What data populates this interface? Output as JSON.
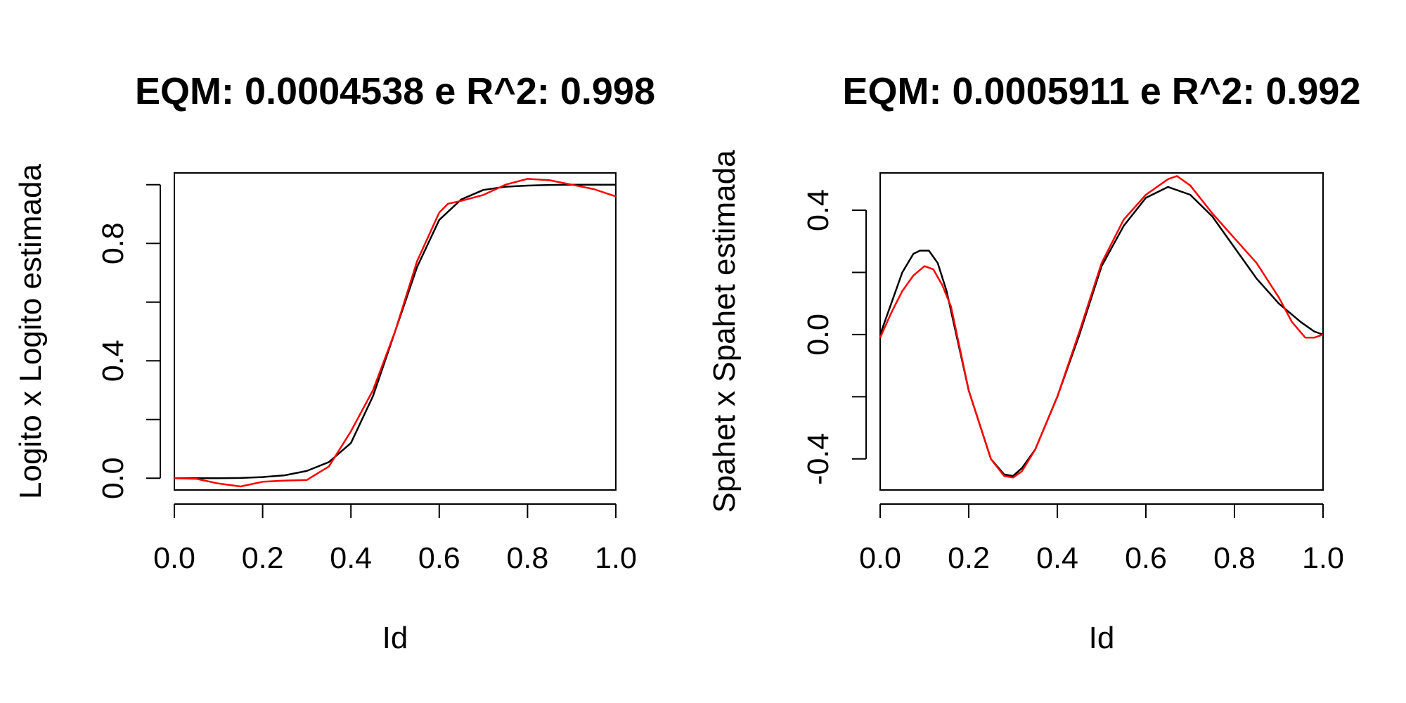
{
  "chart_data": [
    {
      "type": "line",
      "title": "EQM: 0.0004538 e R^2: 0.998",
      "xlabel": "Id",
      "ylabel": "Logito x Logito estimada",
      "xlim": [
        0,
        1
      ],
      "ylim": [
        -0.04,
        1.04
      ],
      "xticks": [
        0.0,
        0.2,
        0.4,
        0.6,
        0.8,
        1.0
      ],
      "xtick_labels": [
        "0.0",
        "0.2",
        "0.4",
        "0.6",
        "0.8",
        "1.0"
      ],
      "yticks": [
        0.0,
        0.2,
        0.4,
        0.6,
        0.8,
        1.0
      ],
      "ytick_labels": [
        "0.0",
        "",
        "0.4",
        "",
        "0.8",
        ""
      ],
      "grid": false,
      "series": [
        {
          "color": "#000000",
          "x": [
            0.0,
            0.05,
            0.1,
            0.15,
            0.2,
            0.25,
            0.3,
            0.35,
            0.4,
            0.45,
            0.5,
            0.55,
            0.6,
            0.65,
            0.7,
            0.75,
            0.8,
            0.85,
            0.9,
            0.95,
            1.0
          ],
          "y": [
            0.0,
            0.0,
            0.0,
            0.001,
            0.004,
            0.01,
            0.025,
            0.055,
            0.12,
            0.28,
            0.5,
            0.72,
            0.88,
            0.95,
            0.982,
            0.993,
            0.997,
            0.999,
            1.0,
            1.0,
            1.0
          ]
        },
        {
          "color": "#ff0000",
          "x": [
            0.0,
            0.05,
            0.1,
            0.15,
            0.2,
            0.25,
            0.3,
            0.35,
            0.4,
            0.45,
            0.5,
            0.55,
            0.6,
            0.62,
            0.65,
            0.7,
            0.75,
            0.8,
            0.85,
            0.9,
            0.95,
            1.0
          ],
          "y": [
            0.0,
            -0.002,
            -0.018,
            -0.028,
            -0.012,
            -0.008,
            -0.006,
            0.04,
            0.16,
            0.3,
            0.5,
            0.74,
            0.905,
            0.935,
            0.945,
            0.965,
            1.0,
            1.02,
            1.015,
            1.0,
            0.985,
            0.96
          ]
        }
      ]
    },
    {
      "type": "line",
      "title": "EQM: 0.0005911 e R^2: 0.992",
      "xlabel": "Id",
      "ylabel": "Spahet x Spahet estimada",
      "xlim": [
        0,
        1
      ],
      "ylim": [
        -0.5,
        0.52
      ],
      "xticks": [
        0.0,
        0.2,
        0.4,
        0.6,
        0.8,
        1.0
      ],
      "xtick_labels": [
        "0.0",
        "0.2",
        "0.4",
        "0.6",
        "0.8",
        "1.0"
      ],
      "yticks": [
        -0.4,
        -0.2,
        0.0,
        0.2,
        0.4
      ],
      "ytick_labels": [
        "-0.4",
        "",
        "0.0",
        "",
        "0.4"
      ],
      "grid": false,
      "series": [
        {
          "color": "#000000",
          "x": [
            0.0,
            0.025,
            0.05,
            0.075,
            0.09,
            0.11,
            0.13,
            0.15,
            0.2,
            0.25,
            0.28,
            0.3,
            0.32,
            0.35,
            0.4,
            0.45,
            0.5,
            0.55,
            0.6,
            0.65,
            0.7,
            0.75,
            0.8,
            0.85,
            0.9,
            0.95,
            0.98,
            1.0
          ],
          "y": [
            0.0,
            0.1,
            0.2,
            0.26,
            0.27,
            0.27,
            0.23,
            0.14,
            -0.18,
            -0.4,
            -0.45,
            -0.455,
            -0.43,
            -0.37,
            -0.2,
            0.0,
            0.22,
            0.35,
            0.44,
            0.475,
            0.45,
            0.38,
            0.28,
            0.18,
            0.1,
            0.04,
            0.01,
            0.0
          ]
        },
        {
          "color": "#ff0000",
          "x": [
            0.0,
            0.025,
            0.05,
            0.075,
            0.1,
            0.12,
            0.14,
            0.16,
            0.2,
            0.25,
            0.28,
            0.3,
            0.32,
            0.35,
            0.4,
            0.45,
            0.5,
            0.55,
            0.6,
            0.65,
            0.67,
            0.7,
            0.75,
            0.8,
            0.85,
            0.9,
            0.93,
            0.96,
            0.98,
            1.0
          ],
          "y": [
            -0.01,
            0.07,
            0.14,
            0.19,
            0.22,
            0.21,
            0.16,
            0.09,
            -0.18,
            -0.4,
            -0.455,
            -0.46,
            -0.44,
            -0.37,
            -0.2,
            0.01,
            0.23,
            0.37,
            0.45,
            0.5,
            0.51,
            0.48,
            0.39,
            0.31,
            0.23,
            0.12,
            0.04,
            -0.01,
            -0.01,
            0.0
          ]
        }
      ]
    }
  ]
}
